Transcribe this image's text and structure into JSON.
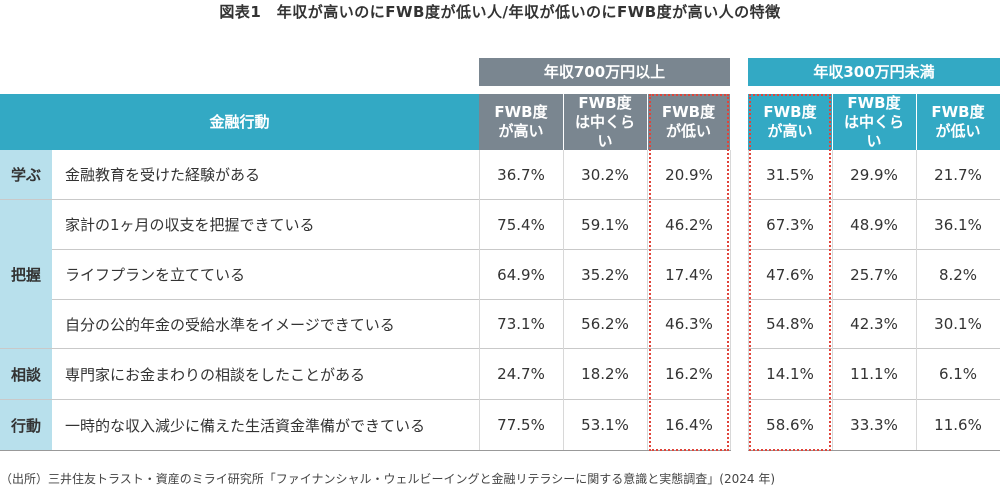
{
  "title": "図表1　年収が高いのにFWB度が低い人/年収が低いのにFWB度が高い人の特徴",
  "groups": {
    "high_income": "年収700万円以上",
    "low_income": "年収300万円未満"
  },
  "header": {
    "behavior": "金融行動",
    "fwb_high": "FWB度が高い",
    "fwb_mid": "FWB度は中くらい",
    "fwb_low": "FWB度が低い"
  },
  "categories": {
    "learn": "学ぶ",
    "grasp": "把握",
    "consult": "相談",
    "act": "行動"
  },
  "rows": [
    {
      "label": "金融教育を受けた経験がある",
      "values": [
        "36.7%",
        "30.2%",
        "20.9%",
        "31.5%",
        "29.9%",
        "21.7%"
      ]
    },
    {
      "label": "家計の1ヶ月の収支を把握できている",
      "values": [
        "75.4%",
        "59.1%",
        "46.2%",
        "67.3%",
        "48.9%",
        "36.1%"
      ]
    },
    {
      "label": "ライフプランを立てている",
      "values": [
        "64.9%",
        "35.2%",
        "17.4%",
        "47.6%",
        "25.7%",
        "8.2%"
      ]
    },
    {
      "label": "自分の公的年金の受給水準をイメージできている",
      "values": [
        "73.1%",
        "56.2%",
        "46.3%",
        "54.8%",
        "42.3%",
        "30.1%"
      ]
    },
    {
      "label": "専門家にお金まわりの相談をしたことがある",
      "values": [
        "24.7%",
        "18.2%",
        "16.2%",
        "14.1%",
        "11.1%",
        "6.1%"
      ]
    },
    {
      "label": "一時的な収入減少に備えた生活資金準備ができている",
      "values": [
        "77.5%",
        "53.1%",
        "16.4%",
        "58.6%",
        "33.3%",
        "11.6%"
      ]
    }
  ],
  "source": "（出所）三井住友トラスト・資産のミライ研究所「ファイナンシャル・ウェルビーイングと金融リテラシーに関する意識と実態調査」(2024 年)",
  "colors": {
    "header_teal": "#33a9c4",
    "header_gray": "#7a8690",
    "category_bg": "#b8e0ec",
    "highlight_dash": "#e0443a"
  }
}
